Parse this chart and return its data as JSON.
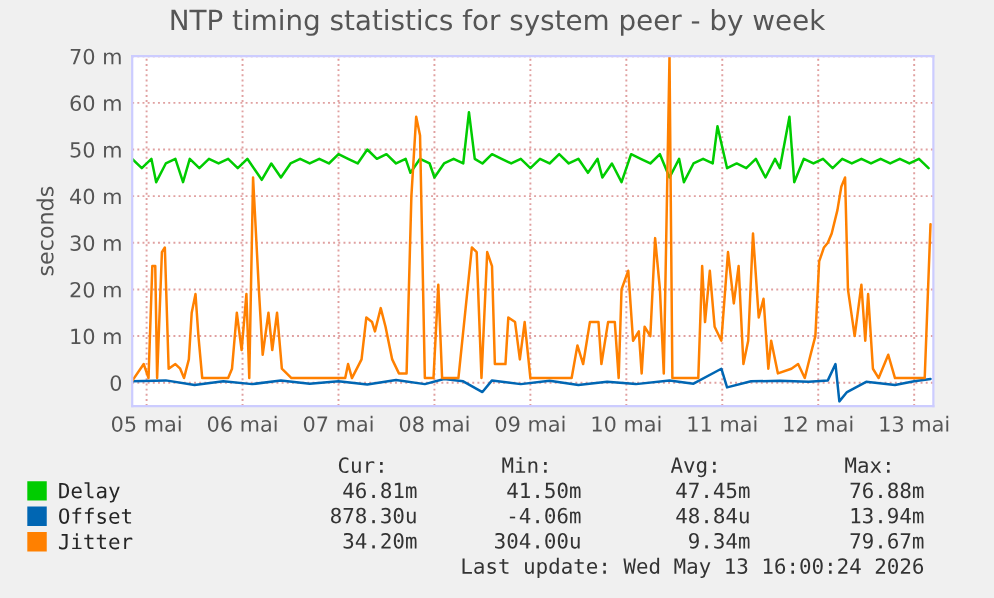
{
  "chart_data": {
    "type": "line",
    "title": "NTP timing statistics for system peer - by week",
    "ylabel": "seconds",
    "xlim": [
      "2026-05-05T08:24",
      "2026-05-13T16:48"
    ],
    "xticks": [
      {
        "value": "2026-05-05T12:00",
        "label": "05 mai"
      },
      {
        "value": "2026-05-06T12:00",
        "label": "06 mai"
      },
      {
        "value": "2026-05-07T12:00",
        "label": "07 mai"
      },
      {
        "value": "2026-05-08T12:00",
        "label": "08 mai"
      },
      {
        "value": "2026-05-09T12:00",
        "label": "09 mai"
      },
      {
        "value": "2026-05-10T12:00",
        "label": "10 mai"
      },
      {
        "value": "2026-05-11T12:00",
        "label": "11 mai"
      },
      {
        "value": "2026-05-12T12:00",
        "label": "12 mai"
      },
      {
        "value": "2026-05-13T12:00",
        "label": "13 mai"
      }
    ],
    "ylim": [
      -5,
      70
    ],
    "yticks": [
      {
        "value": 0,
        "label": "0"
      },
      {
        "value": 10,
        "label": "10 m"
      },
      {
        "value": 20,
        "label": "20 m"
      },
      {
        "value": 30,
        "label": "30 m"
      },
      {
        "value": 40,
        "label": "40 m"
      },
      {
        "value": 50,
        "label": "50 m"
      },
      {
        "value": 60,
        "label": "60 m"
      },
      {
        "value": 70,
        "label": "70 m"
      }
    ],
    "grid": true,
    "legend": "bottom left",
    "series": [
      {
        "name": "Delay",
        "color": "#00cc00",
        "x": [
          "2026-05-05T08:24",
          "2026-05-05T10:48",
          "2026-05-05T13:12",
          "2026-05-05T14:24",
          "2026-05-05T16:48",
          "2026-05-05T19:12",
          "2026-05-05T21:07",
          "2026-05-05T22:48",
          "2026-05-06T01:12",
          "2026-05-06T03:36",
          "2026-05-06T06:00",
          "2026-05-06T08:24",
          "2026-05-06T10:48",
          "2026-05-06T13:12",
          "2026-05-06T15:36",
          "2026-05-06T16:48",
          "2026-05-06T19:12",
          "2026-05-06T21:36",
          "2026-05-07T00:00",
          "2026-05-07T02:24",
          "2026-05-07T04:48",
          "2026-05-07T07:12",
          "2026-05-07T09:36",
          "2026-05-07T12:00",
          "2026-05-07T14:24",
          "2026-05-07T16:48",
          "2026-05-07T19:12",
          "2026-05-07T21:36",
          "2026-05-08T00:00",
          "2026-05-08T02:24",
          "2026-05-08T04:48",
          "2026-05-08T06:00",
          "2026-05-08T08:24",
          "2026-05-08T10:48",
          "2026-05-08T12:00",
          "2026-05-08T14:24",
          "2026-05-08T16:48",
          "2026-05-08T19:12",
          "2026-05-08T20:38",
          "2026-05-08T22:05",
          "2026-05-09T00:00",
          "2026-05-09T02:24",
          "2026-05-09T04:48",
          "2026-05-09T07:12",
          "2026-05-09T09:36",
          "2026-05-09T12:00",
          "2026-05-09T14:24",
          "2026-05-09T16:48",
          "2026-05-09T19:12",
          "2026-05-09T21:36",
          "2026-05-10T00:00",
          "2026-05-10T02:24",
          "2026-05-10T04:48",
          "2026-05-10T06:00",
          "2026-05-10T08:24",
          "2026-05-10T10:48",
          "2026-05-10T13:12",
          "2026-05-10T15:36",
          "2026-05-10T18:00",
          "2026-05-10T20:24",
          "2026-05-10T22:48",
          "2026-05-11T01:12",
          "2026-05-11T02:24",
          "2026-05-11T04:48",
          "2026-05-11T07:12",
          "2026-05-11T09:36",
          "2026-05-11T10:48",
          "2026-05-11T13:12",
          "2026-05-11T15:36",
          "2026-05-11T18:00",
          "2026-05-11T20:24",
          "2026-05-11T22:48",
          "2026-05-12T01:12",
          "2026-05-12T02:24",
          "2026-05-12T04:48",
          "2026-05-12T06:00",
          "2026-05-12T08:24",
          "2026-05-12T10:48",
          "2026-05-12T13:12",
          "2026-05-12T15:36",
          "2026-05-12T18:00",
          "2026-05-12T20:24",
          "2026-05-12T22:48",
          "2026-05-13T01:12",
          "2026-05-13T03:36",
          "2026-05-13T06:00",
          "2026-05-13T08:24",
          "2026-05-13T10:48",
          "2026-05-13T13:12",
          "2026-05-13T15:36"
        ],
        "values": [
          48,
          46,
          48,
          43,
          47,
          48,
          43,
          48,
          46,
          48,
          47,
          48,
          46,
          48,
          45,
          43.5,
          47,
          44,
          47,
          48,
          47,
          48,
          47,
          49,
          48,
          47,
          50,
          48,
          49,
          47,
          48,
          45,
          48,
          47,
          44,
          47,
          48,
          47,
          58,
          48,
          47,
          49,
          48,
          47,
          48,
          46,
          48,
          47,
          49,
          47,
          48,
          45,
          48,
          44,
          47,
          43,
          49,
          48,
          47,
          49,
          44,
          48,
          43,
          47,
          48,
          47,
          55,
          46,
          47,
          46,
          48,
          44,
          48,
          46,
          57,
          43,
          48,
          47,
          48,
          46,
          48,
          47,
          48,
          47,
          48,
          47,
          48,
          47,
          48,
          46
        ]
      },
      {
        "name": "Offset",
        "color": "#0066b3",
        "x": [
          "2026-05-05T08:24",
          "2026-05-05T16:48",
          "2026-05-06T00:00",
          "2026-05-06T07:12",
          "2026-05-06T14:24",
          "2026-05-06T21:36",
          "2026-05-07T04:48",
          "2026-05-07T12:00",
          "2026-05-07T19:12",
          "2026-05-08T02:24",
          "2026-05-08T09:36",
          "2026-05-08T14:24",
          "2026-05-08T19:12",
          "2026-05-09T00:00",
          "2026-05-09T02:24",
          "2026-05-09T09:36",
          "2026-05-09T16:48",
          "2026-05-10T00:00",
          "2026-05-10T07:12",
          "2026-05-10T14:24",
          "2026-05-10T22:48",
          "2026-05-11T04:48",
          "2026-05-11T11:46",
          "2026-05-11T13:12",
          "2026-05-11T19:12",
          "2026-05-12T02:24",
          "2026-05-12T09:36",
          "2026-05-12T14:24",
          "2026-05-12T16:19",
          "2026-05-12T17:17",
          "2026-05-12T19:12",
          "2026-05-13T00:00",
          "2026-05-13T07:12",
          "2026-05-13T12:00",
          "2026-05-13T16:05"
        ],
        "values": [
          0.3,
          0.5,
          -0.5,
          0.3,
          -0.3,
          0.5,
          -0.2,
          0.3,
          -0.4,
          0.6,
          -0.3,
          0.8,
          0.3,
          -2,
          0.5,
          -0.3,
          0.4,
          -0.5,
          0.2,
          -0.3,
          0.5,
          -0.2,
          3,
          -1,
          0.3,
          0.4,
          0.2,
          0.5,
          4,
          -4,
          -2,
          0.2,
          -0.5,
          0.3,
          0.8
        ]
      },
      {
        "name": "Jitter",
        "color": "#ff8000",
        "x": [
          "2026-05-05T08:24",
          "2026-05-05T11:17",
          "2026-05-05T12:29",
          "2026-05-05T13:26",
          "2026-05-05T14:10",
          "2026-05-05T14:38",
          "2026-05-05T15:50",
          "2026-05-05T16:34",
          "2026-05-05T17:31",
          "2026-05-05T19:12",
          "2026-05-05T20:24",
          "2026-05-05T21:22",
          "2026-05-05T22:34",
          "2026-05-05T23:17",
          "2026-05-06T00:14",
          "2026-05-06T00:58",
          "2026-05-06T01:55",
          "2026-05-06T08:24",
          "2026-05-06T09:22",
          "2026-05-06T10:34",
          "2026-05-06T11:46",
          "2026-05-06T12:58",
          "2026-05-06T13:41",
          "2026-05-06T14:38",
          "2026-05-06T16:05",
          "2026-05-06T17:02",
          "2026-05-06T18:29",
          "2026-05-06T19:26",
          "2026-05-06T20:38",
          "2026-05-06T21:50",
          "2026-05-07T00:14",
          "2026-05-07T13:41",
          "2026-05-07T14:24",
          "2026-05-07T15:22",
          "2026-05-07T17:46",
          "2026-05-07T18:58",
          "2026-05-07T20:24",
          "2026-05-07T21:07",
          "2026-05-07T22:34",
          "2026-05-07T23:46",
          "2026-05-08T01:26",
          "2026-05-08T03:07",
          "2026-05-08T05:02",
          "2026-05-08T06:14",
          "2026-05-08T07:26",
          "2026-05-08T08:24",
          "2026-05-08T09:36",
          "2026-05-08T11:46",
          "2026-05-08T12:58",
          "2026-05-08T13:55",
          "2026-05-08T18:00",
          "2026-05-08T21:22",
          "2026-05-08T22:34",
          "2026-05-08T23:46",
          "2026-05-09T01:12",
          "2026-05-09T02:24",
          "2026-05-09T03:07",
          "2026-05-09T05:46",
          "2026-05-09T06:29",
          "2026-05-09T08:10",
          "2026-05-09T09:22",
          "2026-05-09T10:34",
          "2026-05-09T12:00",
          "2026-05-09T22:19",
          "2026-05-09T23:46",
          "2026-05-10T01:12",
          "2026-05-10T02:53",
          "2026-05-10T05:02",
          "2026-05-10T05:46",
          "2026-05-10T07:26",
          "2026-05-10T09:07",
          "2026-05-10T10:05",
          "2026-05-10T10:48",
          "2026-05-10T12:29",
          "2026-05-10T13:41",
          "2026-05-10T15:07",
          "2026-05-10T15:50",
          "2026-05-10T16:34",
          "2026-05-10T18:00",
          "2026-05-10T19:12",
          "2026-05-10T20:24",
          "2026-05-10T21:22",
          "2026-05-10T22:48",
          "2026-05-10T23:31",
          "2026-05-11T06:00",
          "2026-05-11T06:58",
          "2026-05-11T07:41",
          "2026-05-11T08:53",
          "2026-05-11T10:05",
          "2026-05-11T11:46",
          "2026-05-11T13:26",
          "2026-05-11T14:53",
          "2026-05-11T16:05",
          "2026-05-11T17:17",
          "2026-05-11T18:29",
          "2026-05-11T19:41",
          "2026-05-11T21:07",
          "2026-05-11T22:19",
          "2026-05-11T23:31",
          "2026-05-12T00:14",
          "2026-05-12T01:55",
          "2026-05-12T05:17",
          "2026-05-12T06:58",
          "2026-05-12T08:38",
          "2026-05-12T10:05",
          "2026-05-12T11:17",
          "2026-05-12T12:14",
          "2026-05-12T13:26",
          "2026-05-12T14:24",
          "2026-05-12T15:22",
          "2026-05-12T16:48",
          "2026-05-12T17:46",
          "2026-05-12T18:43",
          "2026-05-12T19:26",
          "2026-05-12T21:07",
          "2026-05-12T22:48",
          "2026-05-12T23:46",
          "2026-05-13T00:29",
          "2026-05-13T01:41",
          "2026-05-13T03:07",
          "2026-05-13T05:31",
          "2026-05-13T07:12",
          "2026-05-13T14:38",
          "2026-05-13T16:05"
        ],
        "values": [
          0.4,
          4,
          1,
          25,
          25,
          1,
          28,
          29,
          3,
          4,
          3,
          1,
          5,
          15,
          19,
          10,
          1,
          1,
          3,
          15,
          7,
          19,
          1,
          44,
          20,
          6,
          15,
          7,
          15,
          3,
          1,
          1,
          4,
          1,
          5,
          14,
          13,
          11,
          16,
          12,
          5,
          2,
          2,
          40,
          57,
          53,
          1,
          1,
          21,
          1,
          1,
          29,
          28,
          1,
          28,
          25,
          4,
          4,
          14,
          13,
          5,
          13,
          1,
          1,
          8,
          4,
          13,
          13,
          4,
          13,
          13,
          1,
          20,
          24,
          9,
          11,
          2,
          12,
          10,
          31,
          20,
          2,
          70,
          1,
          1,
          25,
          13,
          24,
          12,
          9,
          28,
          17,
          25,
          4,
          9,
          32,
          14,
          18,
          3,
          9,
          2,
          3,
          4,
          1,
          6,
          10,
          26,
          29,
          30,
          32,
          37,
          42,
          44,
          20,
          10,
          21,
          9,
          19,
          3,
          1,
          6,
          1,
          1,
          34
        ]
      }
    ],
    "annotations": [
      "Cur:",
      "Min:",
      "Avg:",
      "Max:",
      "46.81m",
      "41.50m",
      "47.45m",
      "76.88m",
      "878.30u",
      "-4.06m",
      "48.84u",
      "13.94m",
      "34.20m",
      "304.00u",
      "9.34m",
      "79.67m",
      "Last update: Wed May 13 16:00:24 2026"
    ]
  }
}
